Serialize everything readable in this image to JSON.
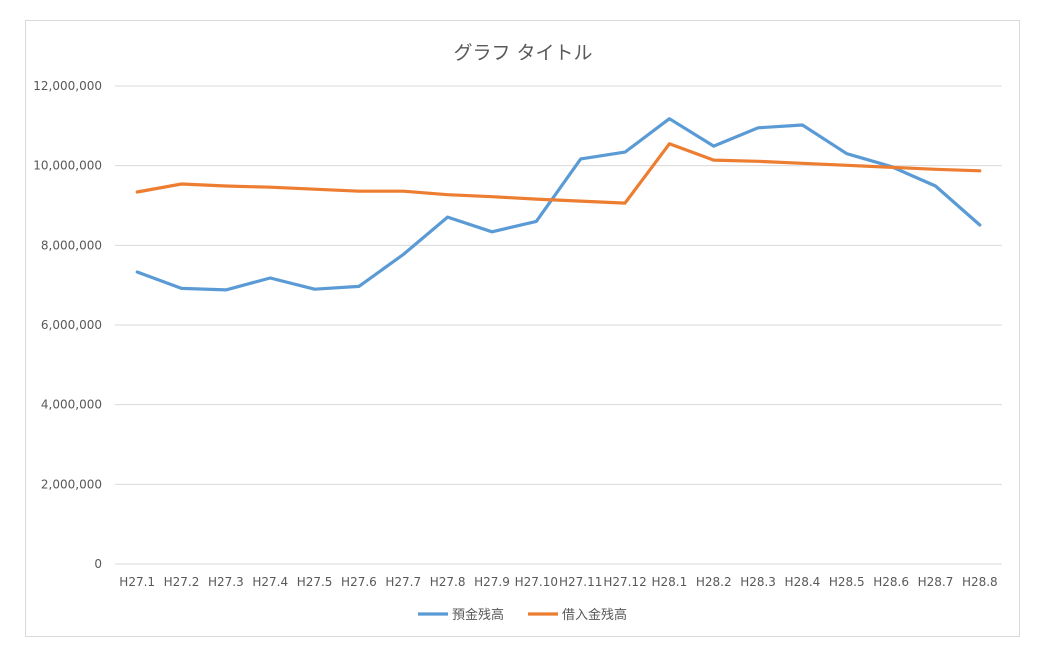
{
  "chart_data": {
    "type": "line",
    "title": "グラフ タイトル",
    "xlabel": "",
    "ylabel": "",
    "categories": [
      "H27.1",
      "H27.2",
      "H27.3",
      "H27.4",
      "H27.5",
      "H27.6",
      "H27.7",
      "H27.8",
      "H27.9",
      "H27.10",
      "H27.11",
      "H27.12",
      "H28.1",
      "H28.2",
      "H28.3",
      "H28.4",
      "H28.5",
      "H28.6",
      "H28.7",
      "H28.8"
    ],
    "ylim": [
      0,
      12000000
    ],
    "yticks": [
      0,
      2000000,
      4000000,
      6000000,
      8000000,
      10000000,
      12000000
    ],
    "ytick_labels": [
      "0",
      "2,000,000",
      "4,000,000",
      "6,000,000",
      "8,000,000",
      "10,000,000",
      "12,000,000"
    ],
    "grid": true,
    "legend_position": "bottom",
    "series": [
      {
        "name": "預金残高",
        "color": "#5b9bd5",
        "values": [
          7330000,
          6920000,
          6880000,
          7180000,
          6900000,
          6970000,
          7770000,
          8710000,
          8340000,
          8600000,
          10170000,
          10340000,
          11180000,
          10490000,
          10950000,
          11020000,
          10300000,
          9980000,
          9490000,
          8510000
        ]
      },
      {
        "name": "借入金残高",
        "color": "#ed7d31",
        "values": [
          9340000,
          9540000,
          9490000,
          9460000,
          9410000,
          9360000,
          9360000,
          9270000,
          9220000,
          9160000,
          9110000,
          9060000,
          10550000,
          10140000,
          10110000,
          10060000,
          10010000,
          9960000,
          9910000,
          9870000
        ]
      }
    ]
  }
}
